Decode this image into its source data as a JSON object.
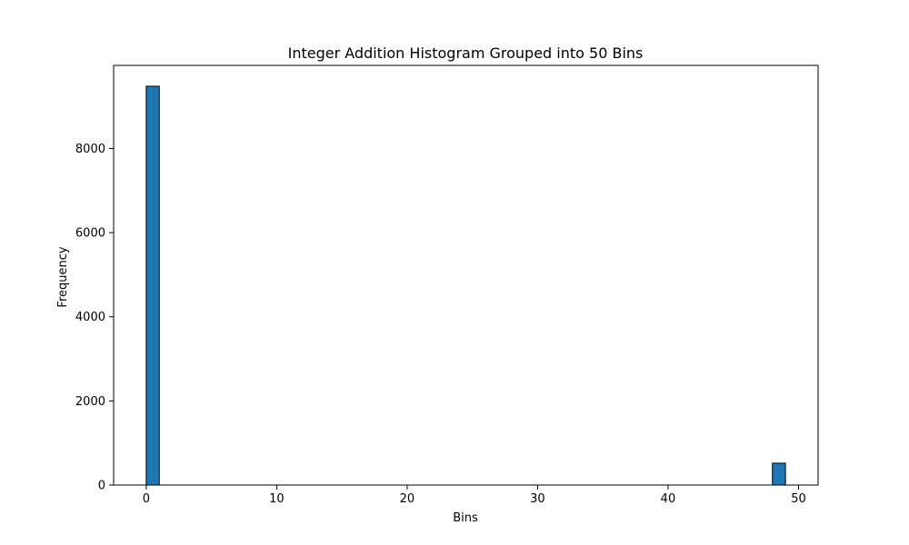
{
  "chart_data": {
    "type": "bar",
    "title": "Integer Addition Histogram Grouped into 50 Bins",
    "xlabel": "Bins",
    "ylabel": "Frequency",
    "bar_color": "#1f77b4",
    "edge_color": "#000000",
    "xlim": [
      -2.5,
      51.5
    ],
    "ylim": [
      0,
      9975
    ],
    "xticks": [
      0,
      10,
      20,
      30,
      40,
      50
    ],
    "yticks": [
      0,
      2000,
      4000,
      6000,
      8000
    ],
    "bins": [
      {
        "start": 0,
        "end": 1,
        "value": 9480
      },
      {
        "start": 48,
        "end": 49,
        "value": 520
      }
    ],
    "grid": false,
    "legend": "none"
  }
}
